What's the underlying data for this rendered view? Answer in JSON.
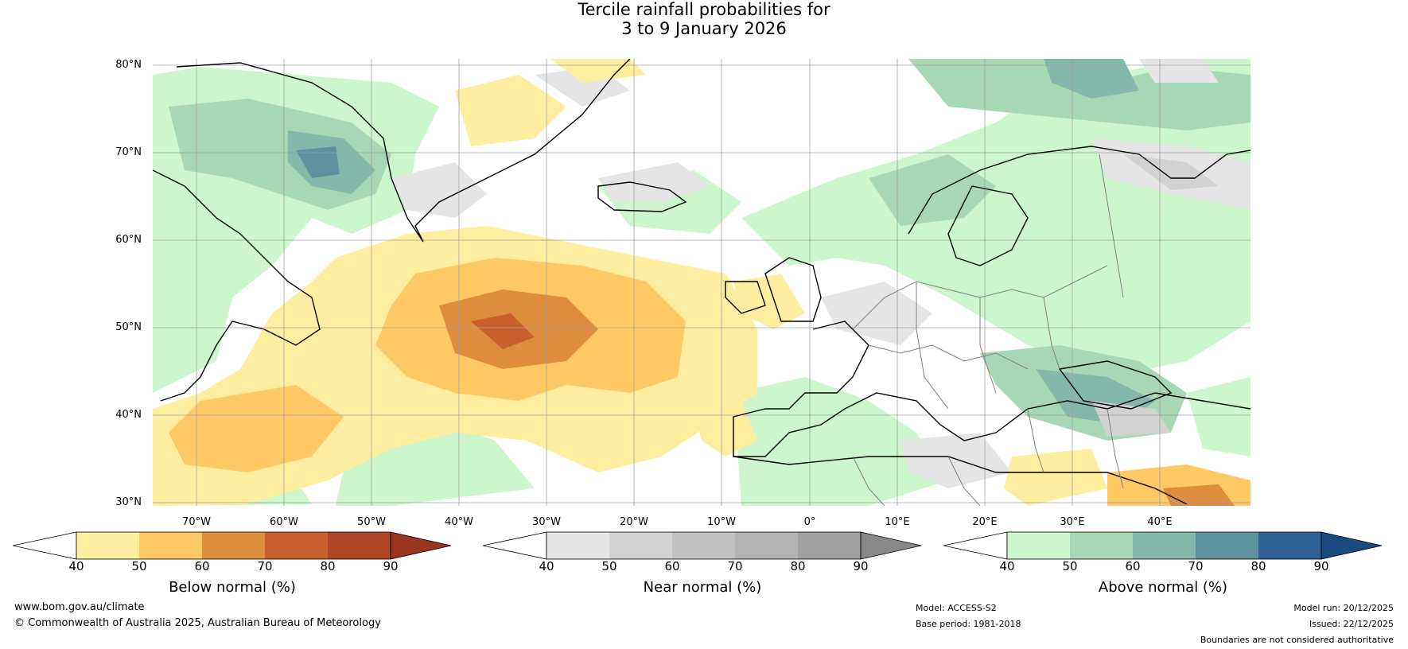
{
  "title": {
    "line1": "Tercile rainfall probabilities for",
    "line2": "3 to 9 January 2026"
  },
  "map": {
    "lat_labels": [
      "80°N",
      "70°N",
      "60°N",
      "50°N",
      "40°N",
      "30°N"
    ],
    "lon_labels": [
      "70°W",
      "60°W",
      "50°W",
      "40°W",
      "30°W",
      "20°W",
      "10°W",
      "0°",
      "10°E",
      "20°E",
      "30°E",
      "40°E"
    ],
    "colors": {
      "below": [
        "#ffeda0",
        "#fec965",
        "#dd8d3d",
        "#c8602e",
        "#ae4726",
        "#993520"
      ],
      "near": [
        "#e5e5e5",
        "#d2d2d2",
        "#c2c2c2",
        "#b2b2b2",
        "#a0a0a0",
        "#888888"
      ],
      "above": [
        "#ccf7cc",
        "#a7d8b5",
        "#84b8ab",
        "#5d91a0",
        "#2e6093",
        "#1a4a80"
      ],
      "coast": "#000000",
      "border": "#808080",
      "grid": "#a0a0a0"
    }
  },
  "legends": {
    "below": {
      "label": "Below normal (%)",
      "ticks": [
        "40",
        "50",
        "60",
        "70",
        "80",
        "90"
      ]
    },
    "near": {
      "label": "Near normal (%)",
      "ticks": [
        "40",
        "50",
        "60",
        "70",
        "80",
        "90"
      ]
    },
    "above": {
      "label": "Above normal (%)",
      "ticks": [
        "40",
        "50",
        "60",
        "70",
        "80",
        "90"
      ]
    }
  },
  "footer": {
    "url": "www.bom.gov.au/climate",
    "copyright": "© Commonwealth of Australia 2025, Australian Bureau of Meteorology",
    "model": "Model: ACCESS-S2",
    "base_period": "Base period: 1981-2018",
    "model_run": "Model run: 20/12/2025",
    "issued": "Issued: 22/12/2025",
    "disclaimer": "Boundaries are not considered authoritative"
  }
}
